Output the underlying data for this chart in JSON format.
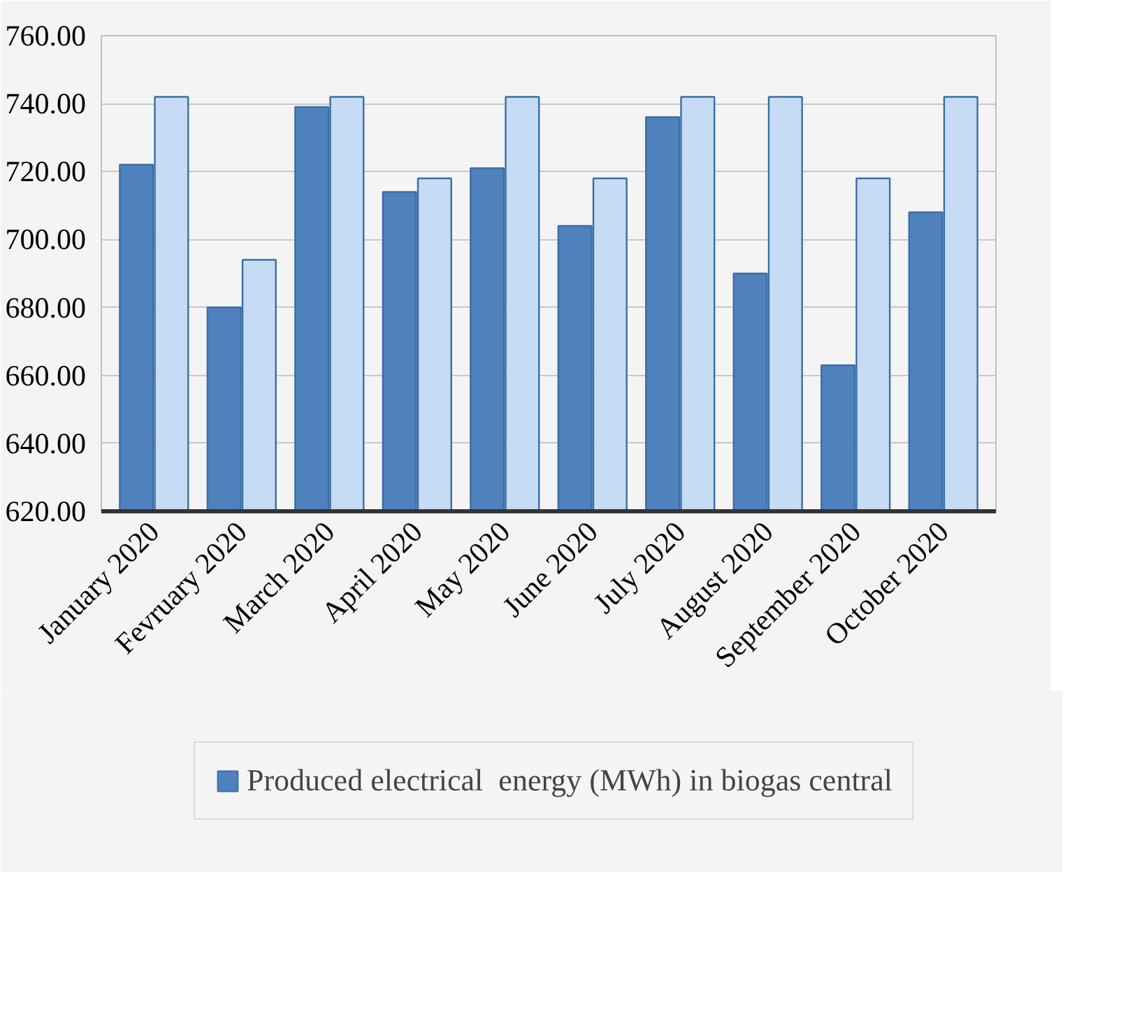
{
  "chart_data": {
    "type": "bar",
    "categories": [
      "January 2020",
      "Fevruary 2020",
      "March 2020",
      "April 2020",
      "May 2020",
      "June 2020",
      "July 2020",
      "August 2020",
      "September 2020",
      "October 2020"
    ],
    "series": [
      {
        "name": "Produced electrical  energy (MWh) in biogas central",
        "color": "#4f81bd",
        "values": [
          722,
          680,
          739,
          714,
          721,
          704,
          736,
          690,
          663,
          708
        ]
      },
      {
        "color": "#c6dcf5",
        "values": [
          742,
          694,
          742,
          718,
          742,
          718,
          742,
          742,
          718,
          742
        ]
      }
    ],
    "ylim": [
      620,
      760
    ],
    "yticks": [
      {
        "value": 620,
        "label": "620.00"
      },
      {
        "value": 640,
        "label": "640.00"
      },
      {
        "value": 660,
        "label": "660.00"
      },
      {
        "value": 680,
        "label": "680.00"
      },
      {
        "value": 700,
        "label": "700.00"
      },
      {
        "value": 720,
        "label": "720.00"
      },
      {
        "value": 740,
        "label": "740.00"
      },
      {
        "value": 760,
        "label": "760.00"
      }
    ],
    "grid": "y",
    "legend": "bottom"
  }
}
